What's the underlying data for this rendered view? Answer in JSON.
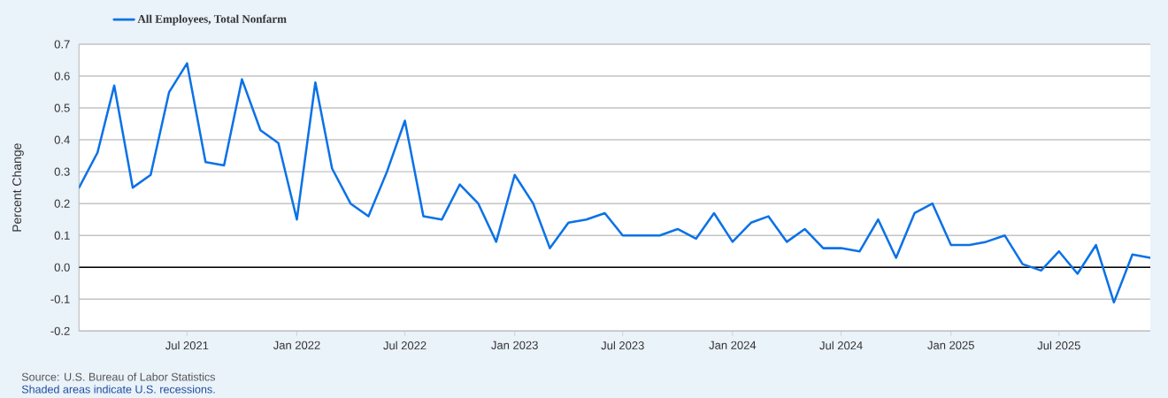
{
  "chart_data": {
    "type": "line",
    "ylabel": "Percent Change",
    "x": [
      "2021-01",
      "2021-02",
      "2021-03",
      "2021-04",
      "2021-05",
      "2021-06",
      "2021-07",
      "2021-08",
      "2021-09",
      "2021-10",
      "2021-11",
      "2021-12",
      "2022-01",
      "2022-02",
      "2022-03",
      "2022-04",
      "2022-05",
      "2022-06",
      "2022-07",
      "2022-08",
      "2022-09",
      "2022-10",
      "2022-11",
      "2022-12",
      "2023-01",
      "2023-02",
      "2023-03",
      "2023-04",
      "2023-05",
      "2023-06",
      "2023-07",
      "2023-08",
      "2023-09",
      "2023-10",
      "2023-11",
      "2023-12",
      "2024-01",
      "2024-02",
      "2024-03",
      "2024-04",
      "2024-05",
      "2024-06",
      "2024-07",
      "2024-08",
      "2024-09",
      "2024-10",
      "2024-11",
      "2024-12",
      "2025-01",
      "2025-02",
      "2025-03",
      "2025-04",
      "2025-05",
      "2025-06",
      "2025-07",
      "2025-08",
      "2025-09",
      "2025-10",
      "2025-11",
      "2025-12"
    ],
    "series": [
      {
        "name": "All Employees, Total Nonfarm",
        "color": "#0b72e7",
        "values": [
          0.25,
          0.36,
          0.57,
          0.25,
          0.29,
          0.55,
          0.64,
          0.33,
          0.32,
          0.59,
          0.43,
          0.39,
          0.15,
          0.58,
          0.31,
          0.2,
          0.16,
          0.3,
          0.46,
          0.16,
          0.15,
          0.26,
          0.2,
          0.08,
          0.29,
          0.2,
          0.06,
          0.14,
          0.15,
          0.17,
          0.1,
          0.1,
          0.1,
          0.12,
          0.09,
          0.17,
          0.08,
          0.14,
          0.16,
          0.08,
          0.12,
          0.06,
          0.06,
          0.05,
          0.15,
          0.03,
          0.17,
          0.2,
          0.07,
          0.07,
          0.08,
          0.1,
          0.01,
          -0.01,
          0.05,
          -0.02,
          0.07,
          -0.11,
          0.04,
          0.03
        ]
      }
    ],
    "xlim": [
      "2021-01",
      "2025-12"
    ],
    "xticks": [
      {
        "value": "2021-07",
        "label": "Jul 2021"
      },
      {
        "value": "2022-01",
        "label": "Jan 2022"
      },
      {
        "value": "2022-07",
        "label": "Jul 2022"
      },
      {
        "value": "2023-01",
        "label": "Jan 2023"
      },
      {
        "value": "2023-07",
        "label": "Jul 2023"
      },
      {
        "value": "2024-01",
        "label": "Jan 2024"
      },
      {
        "value": "2024-07",
        "label": "Jul 2024"
      },
      {
        "value": "2025-01",
        "label": "Jan 2025"
      },
      {
        "value": "2025-07",
        "label": "Jul 2025"
      }
    ],
    "ylim": [
      -0.2,
      0.7
    ],
    "yticks": [
      -0.2,
      -0.1,
      {
        "value": 0,
        "label": "0.0"
      },
      0.1,
      0.2,
      0.3,
      0.4,
      0.5,
      0.6,
      0.7
    ],
    "ref_lines": [
      {
        "axis": "y",
        "value": 0,
        "color": "#000000"
      }
    ],
    "grid": "y",
    "legend": "top left",
    "annotations": [
      "Source: U.S. Bureau of Labor Statistics",
      "Shaded areas indicate U.S. recessions."
    ]
  }
}
